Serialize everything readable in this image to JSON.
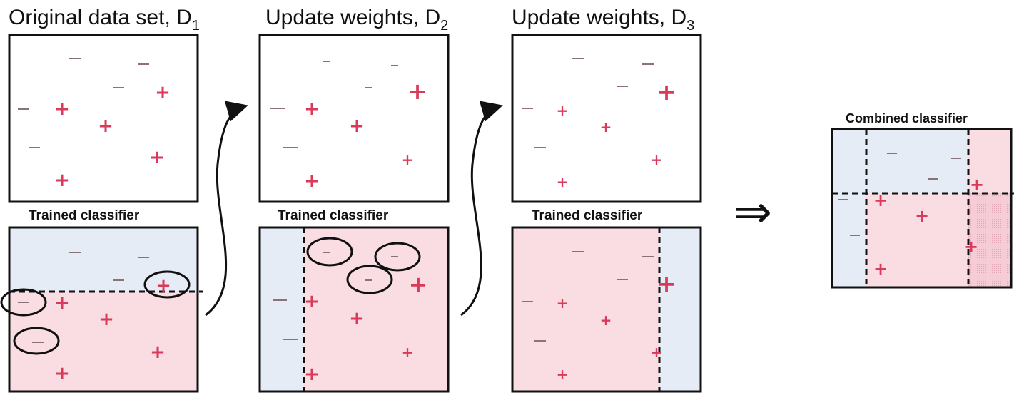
{
  "titles": {
    "d1": {
      "text": "Original data set, D",
      "sub": "1"
    },
    "d2": {
      "text": "Update weights, D",
      "sub": "2"
    },
    "d3": {
      "text": "Update weights, D",
      "sub": "3"
    }
  },
  "captions": {
    "trained_1": "Trained classifier",
    "trained_2": "Trained classifier",
    "trained_3": "Trained classifier",
    "combined": "Combined classifier"
  },
  "implies_symbol": "⇒",
  "colors": {
    "positive_region": "#fadde3",
    "negative_region": "#e5ecf5",
    "positive_mark": "#d93a5a",
    "negative_mark": "#8a7278",
    "outline": "#111111"
  }
}
